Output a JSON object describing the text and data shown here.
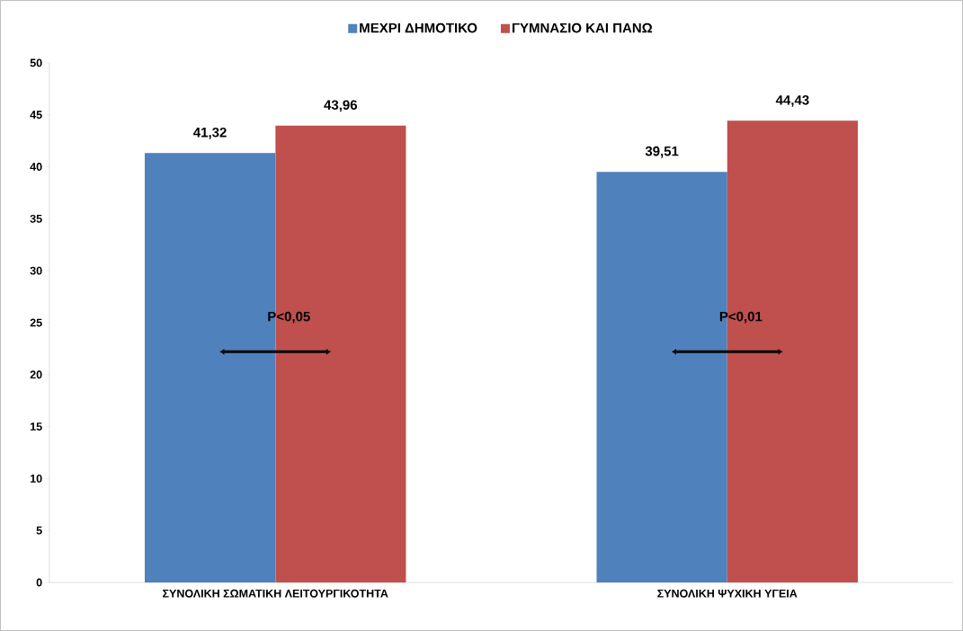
{
  "chart_data": {
    "type": "bar",
    "categories": [
      "ΣΥΝΟΛΙΚΗ ΣΩΜΑΤΙΚΗ ΛΕΙΤΟΥΡΓΙΚΟΤΗΤΑ",
      "ΣΥΝΟΛΙΚΗ ΨΥΧΙΚΗ ΥΓΕΙΑ"
    ],
    "series": [
      {
        "name": "ΜΕΧΡΙ ΔΗΜΟΤΙΚΟ",
        "color": "#4f81bd",
        "values": [
          41.32,
          39.51
        ],
        "value_labels": [
          "41,32",
          "39,51"
        ]
      },
      {
        "name": "ΓΥΜΝΑΣΙΟ ΚΑΙ ΠΑΝΩ",
        "color": "#c0504d",
        "values": [
          43.96,
          44.43
        ],
        "value_labels": [
          "43,96",
          "44,43"
        ]
      }
    ],
    "ylim": [
      0,
      50
    ],
    "yticks": [
      0,
      5,
      10,
      15,
      20,
      25,
      30,
      35,
      40,
      45,
      50
    ],
    "annotations": [
      "P<0,05",
      "P<0,01"
    ],
    "legend": "top",
    "grid": false
  }
}
